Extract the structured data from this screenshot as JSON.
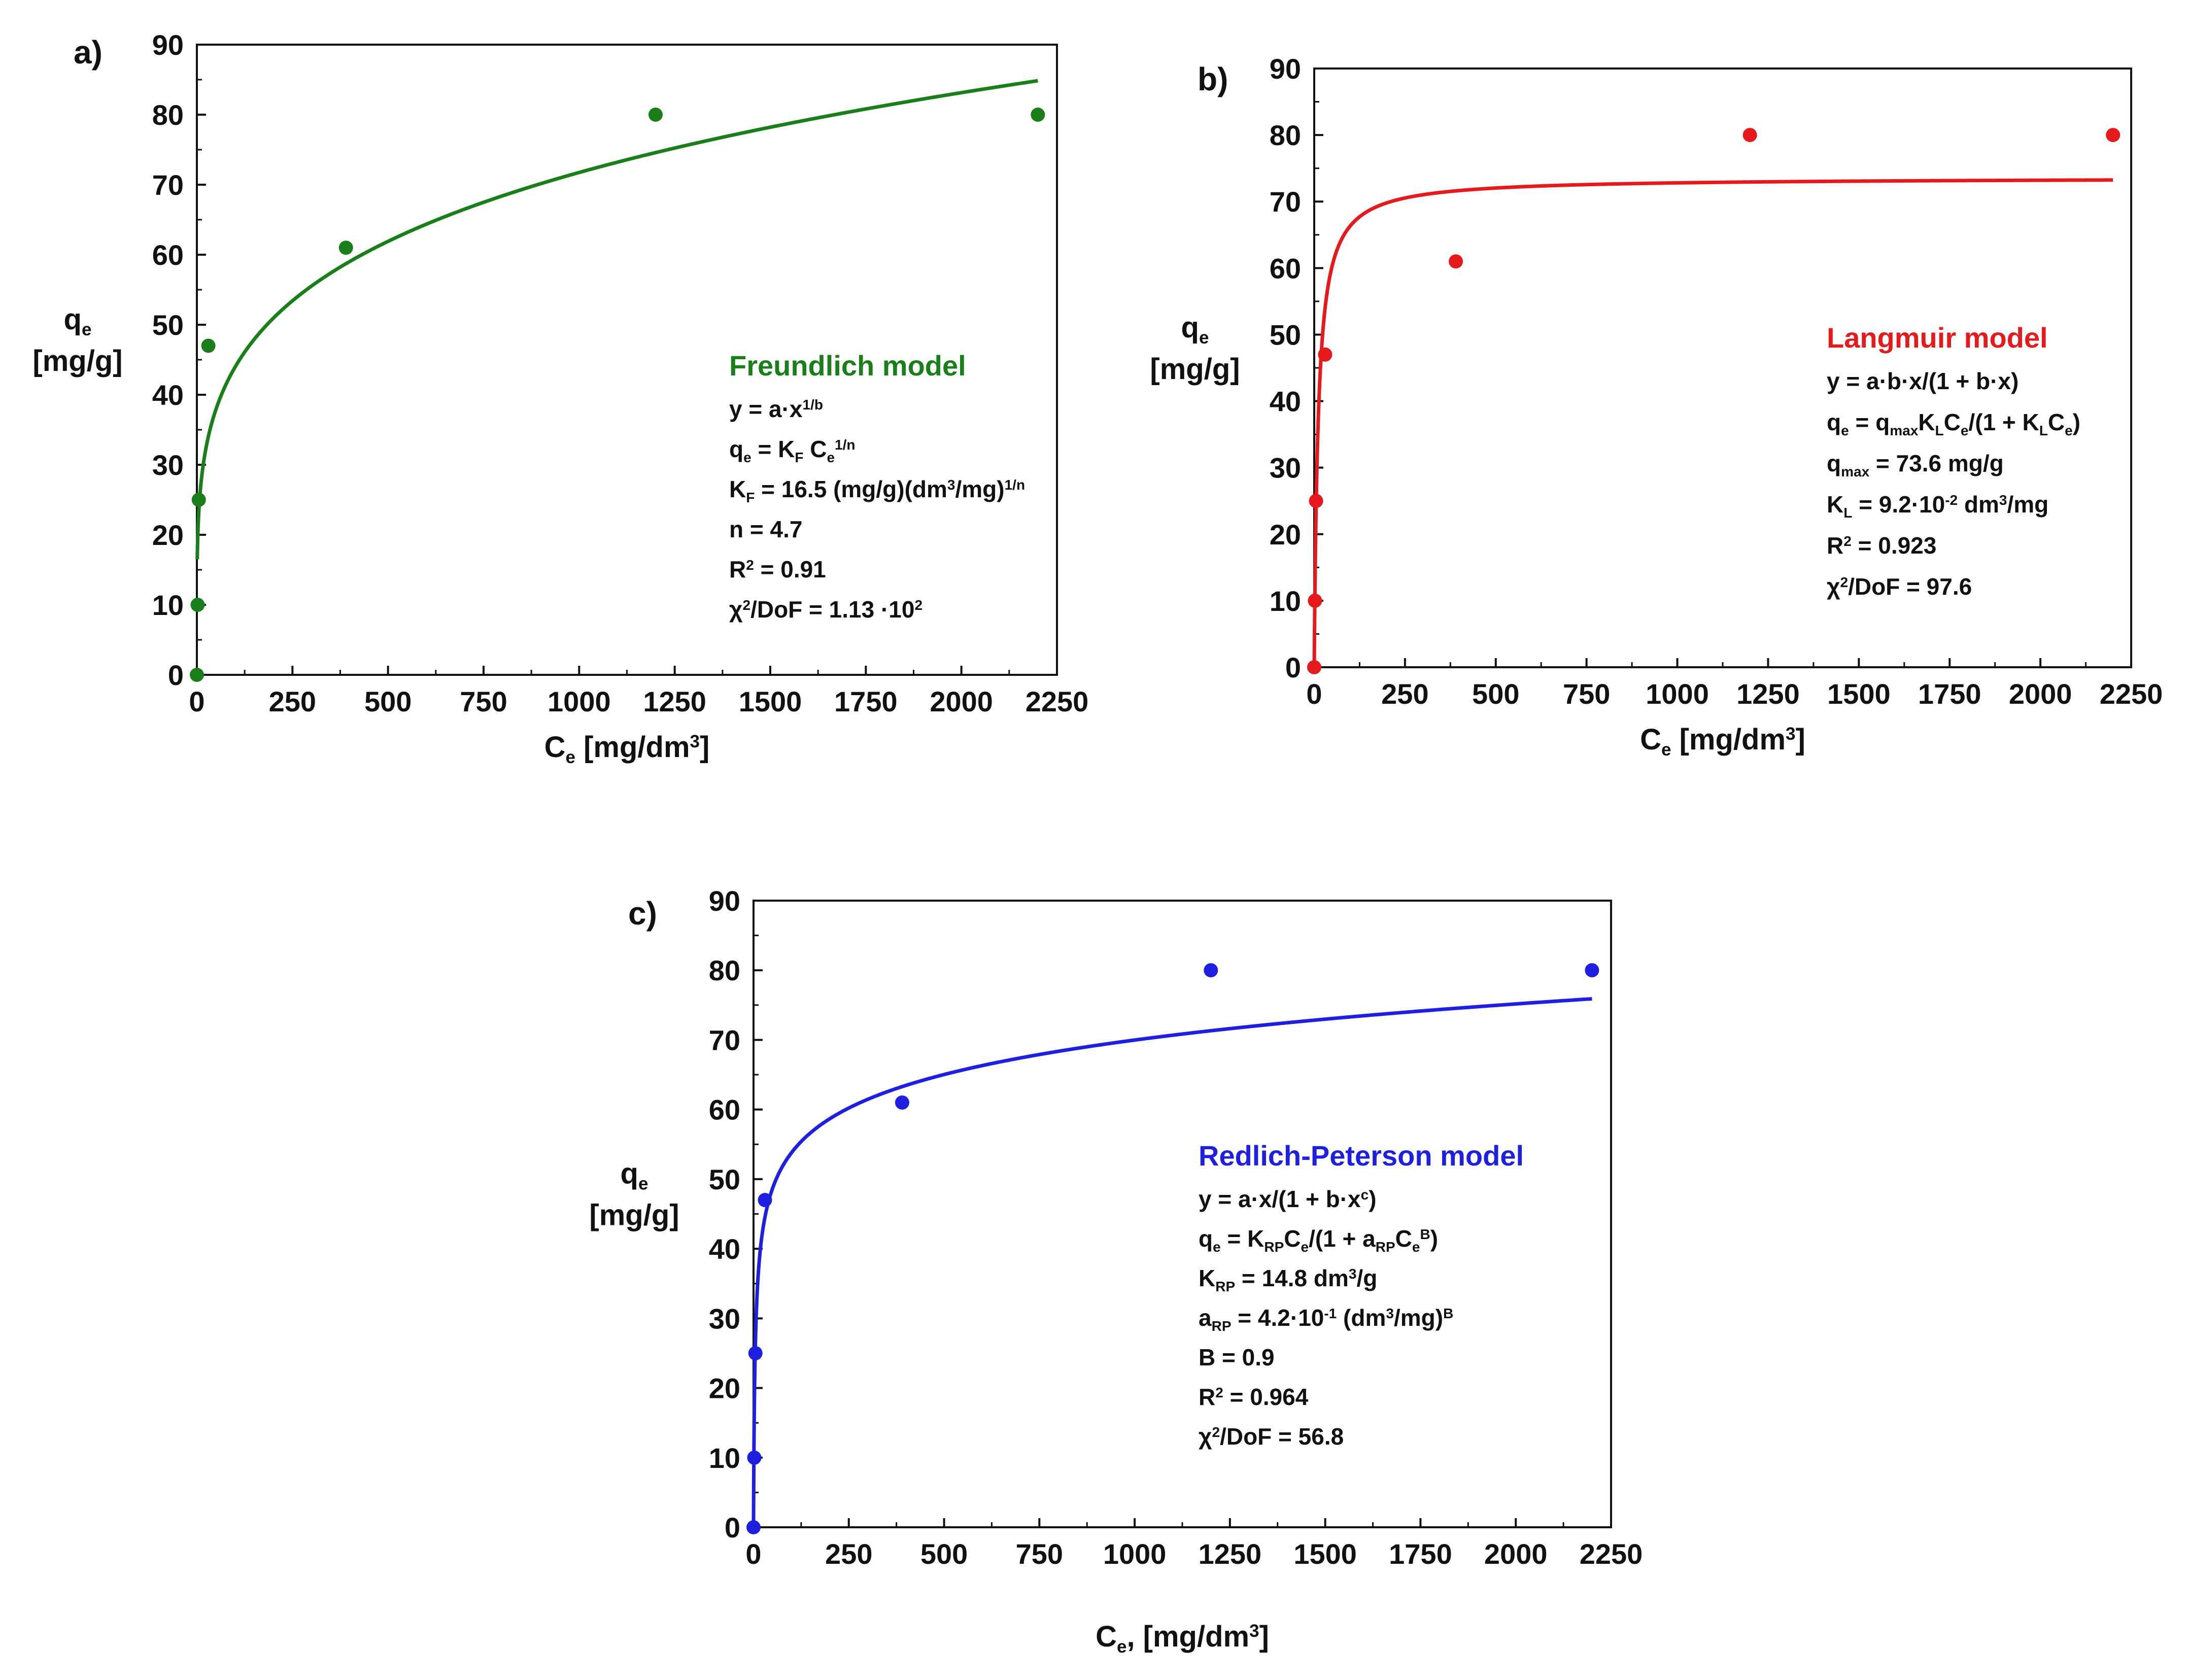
{
  "chart_data": [
    {
      "type": "scatter",
      "panel_label": "a)",
      "color": "#1a7f1a",
      "xlim": [
        0,
        2250
      ],
      "ylim": [
        0,
        90
      ],
      "xticks": [
        0,
        250,
        500,
        750,
        1000,
        1250,
        1500,
        1750,
        2000,
        2250
      ],
      "yticks": [
        0,
        10,
        20,
        30,
        40,
        50,
        60,
        70,
        80,
        90
      ],
      "ylabel": {
        "main": "q",
        "sub": "e",
        "unit": "[mg/g]"
      },
      "xlabel": {
        "main": "C",
        "sub": "e",
        "mid": " [mg/dm",
        "sup": "3",
        "end": "]"
      },
      "points": [
        {
          "x": 0,
          "y": 0
        },
        {
          "x": 2,
          "y": 10
        },
        {
          "x": 5,
          "y": 25
        },
        {
          "x": 30,
          "y": 47
        },
        {
          "x": 390,
          "y": 61
        },
        {
          "x": 1200,
          "y": 80
        },
        {
          "x": 2200,
          "y": 80
        }
      ],
      "fit": {
        "model": "freundlich",
        "a": 16.5,
        "n": 4.7,
        "x_range": [
          1,
          2200
        ]
      },
      "legend_position": "bottom-right",
      "annotation": {
        "title": "Freundlich model",
        "lines": [
          [
            {
              "t": "y = a·x"
            },
            {
              "t": "1/b",
              "s": "sup"
            }
          ],
          [
            {
              "t": "q"
            },
            {
              "t": "e",
              "s": "sub"
            },
            {
              "t": " = K"
            },
            {
              "t": "F",
              "s": "sub"
            },
            {
              "t": " C"
            },
            {
              "t": "e",
              "s": "sub"
            },
            {
              "t": "1/n",
              "s": "sup"
            }
          ],
          [
            {
              "t": "K"
            },
            {
              "t": "F",
              "s": "sub"
            },
            {
              "t": " = 16.5 (mg/g)(dm"
            },
            {
              "t": "3",
              "s": "sup"
            },
            {
              "t": "/mg)"
            },
            {
              "t": "1/n",
              "s": "sup"
            }
          ],
          [
            {
              "t": "n = 4.7"
            }
          ],
          [
            {
              "t": "R"
            },
            {
              "t": "2",
              "s": "sup"
            },
            {
              "t": " = 0.91"
            }
          ],
          [
            {
              "t": "χ"
            },
            {
              "t": "2",
              "s": "sup"
            },
            {
              "t": "/DoF = 1.13 ·10"
            },
            {
              "t": "2",
              "s": "sup"
            }
          ]
        ]
      }
    },
    {
      "type": "scatter",
      "panel_label": "b)",
      "color": "#e41a1c",
      "xlim": [
        0,
        2250
      ],
      "ylim": [
        0,
        90
      ],
      "xticks": [
        0,
        250,
        500,
        750,
        1000,
        1250,
        1500,
        1750,
        2000,
        2250
      ],
      "yticks": [
        0,
        10,
        20,
        30,
        40,
        50,
        60,
        70,
        80,
        90
      ],
      "ylabel": {
        "main": "q",
        "sub": "e",
        "unit": "[mg/g]"
      },
      "xlabel": {
        "main": "C",
        "sub": "e",
        "mid": " [mg/dm",
        "sup": "3",
        "end": "]"
      },
      "points": [
        {
          "x": 0,
          "y": 0
        },
        {
          "x": 2,
          "y": 10
        },
        {
          "x": 5,
          "y": 25
        },
        {
          "x": 30,
          "y": 47
        },
        {
          "x": 390,
          "y": 61
        },
        {
          "x": 1200,
          "y": 80
        },
        {
          "x": 2200,
          "y": 80
        }
      ],
      "fit": {
        "model": "langmuir",
        "qmax": 73.6,
        "KL": 0.092,
        "x_range": [
          0,
          2200
        ]
      },
      "legend_position": "top-right",
      "annotation": {
        "title": "Langmuir model",
        "lines": [
          [
            {
              "t": "y = a·b·x/(1 + b·x)"
            }
          ],
          [
            {
              "t": "q"
            },
            {
              "t": "e",
              "s": "sub"
            },
            {
              "t": " = q"
            },
            {
              "t": "max",
              "s": "sub"
            },
            {
              "t": "K"
            },
            {
              "t": "L",
              "s": "sub"
            },
            {
              "t": "C"
            },
            {
              "t": "e",
              "s": "sub"
            },
            {
              "t": "/(1 + K"
            },
            {
              "t": "L",
              "s": "sub"
            },
            {
              "t": "C"
            },
            {
              "t": "e",
              "s": "sub"
            },
            {
              "t": ")"
            }
          ],
          [
            {
              "t": "q"
            },
            {
              "t": "max",
              "s": "sub"
            },
            {
              "t": " = 73.6 mg/g"
            }
          ],
          [
            {
              "t": "K"
            },
            {
              "t": "L",
              "s": "sub"
            },
            {
              "t": " = 9.2·10"
            },
            {
              "t": "-2",
              "s": "sup"
            },
            {
              "t": " dm"
            },
            {
              "t": "3",
              "s": "sup"
            },
            {
              "t": "/mg"
            }
          ],
          [
            {
              "t": "R"
            },
            {
              "t": "2",
              "s": "sup"
            },
            {
              "t": " = 0.923"
            }
          ],
          [
            {
              "t": "χ"
            },
            {
              "t": "2",
              "s": "sup"
            },
            {
              "t": "/DoF = 97.6"
            }
          ]
        ]
      }
    },
    {
      "type": "scatter",
      "panel_label": "c)",
      "color": "#1f1fe0",
      "xlim": [
        0,
        2250
      ],
      "ylim": [
        0,
        90
      ],
      "xticks": [
        0,
        250,
        500,
        750,
        1000,
        1250,
        1500,
        1750,
        2000,
        2250
      ],
      "yticks": [
        0,
        10,
        20,
        30,
        40,
        50,
        60,
        70,
        80,
        90
      ],
      "ylabel": {
        "main": "q",
        "sub": "e",
        "unit": "[mg/g]"
      },
      "xlabel": {
        "main": "C",
        "sub": "e",
        "mid": ", [mg/dm",
        "sup": "3",
        "end": "]"
      },
      "points": [
        {
          "x": 0,
          "y": 0
        },
        {
          "x": 2,
          "y": 10
        },
        {
          "x": 5,
          "y": 25
        },
        {
          "x": 30,
          "y": 47
        },
        {
          "x": 390,
          "y": 61
        },
        {
          "x": 1200,
          "y": 80
        },
        {
          "x": 2200,
          "y": 80
        }
      ],
      "fit": {
        "model": "redlich-peterson",
        "KRP": 14.8,
        "aRP": 0.42,
        "B": 0.9,
        "x_range": [
          0,
          2200
        ]
      },
      "legend_position": "right",
      "annotation": {
        "title": "Redlich-Peterson model",
        "lines": [
          [
            {
              "t": "y = a·x/(1 + b·x"
            },
            {
              "t": "c",
              "s": "sup"
            },
            {
              "t": ")"
            }
          ],
          [
            {
              "t": "q"
            },
            {
              "t": "e",
              "s": "sub"
            },
            {
              "t": " = K"
            },
            {
              "t": "RP",
              "s": "sub"
            },
            {
              "t": "C"
            },
            {
              "t": "e",
              "s": "sub"
            },
            {
              "t": "/(1 + a"
            },
            {
              "t": "RP",
              "s": "sub"
            },
            {
              "t": "C"
            },
            {
              "t": "e",
              "s": "sub"
            },
            {
              "t": "B",
              "s": "sup"
            },
            {
              "t": ")"
            }
          ],
          [
            {
              "t": "K"
            },
            {
              "t": "RP",
              "s": "sub"
            },
            {
              "t": " = 14.8 dm"
            },
            {
              "t": "3",
              "s": "sup"
            },
            {
              "t": "/g"
            }
          ],
          [
            {
              "t": "a"
            },
            {
              "t": "RP",
              "s": "sub"
            },
            {
              "t": " = 4.2·10"
            },
            {
              "t": "-1",
              "s": "sup"
            },
            {
              "t": " (dm"
            },
            {
              "t": "3",
              "s": "sup"
            },
            {
              "t": "/mg)"
            },
            {
              "t": "B",
              "s": "sup"
            }
          ],
          [
            {
              "t": "B = 0.9"
            }
          ],
          [
            {
              "t": "R"
            },
            {
              "t": "2",
              "s": "sup"
            },
            {
              "t": " = 0.964"
            }
          ],
          [
            {
              "t": "χ"
            },
            {
              "t": "2",
              "s": "sup"
            },
            {
              "t": "/DoF = 56.8"
            }
          ]
        ]
      }
    }
  ]
}
